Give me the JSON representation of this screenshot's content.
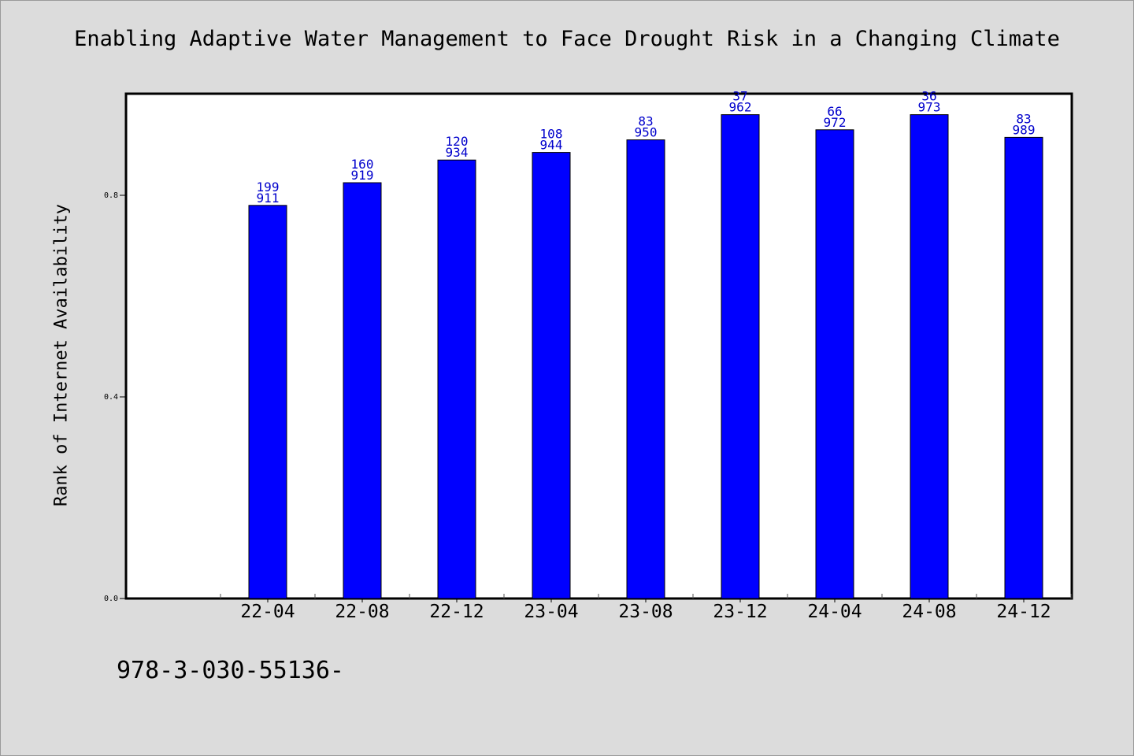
{
  "chart_data": {
    "type": "bar",
    "title": "Enabling Adaptive Water Management to Face Drought Risk in a Changing Climate",
    "xlabel": "",
    "ylabel": "Rank of Internet Availability",
    "categories": [
      "22-04",
      "22-08",
      "22-12",
      "23-04",
      "23-08",
      "23-12",
      "24-04",
      "24-08",
      "24-12"
    ],
    "values": [
      0.78,
      0.825,
      0.87,
      0.885,
      0.91,
      0.96,
      0.93,
      0.96,
      0.915
    ],
    "data_labels_top": [
      "199",
      "160",
      "120",
      "108",
      "83",
      "37",
      "66",
      "36",
      "83"
    ],
    "data_labels_bottom": [
      "911",
      "919",
      "934",
      "944",
      "950",
      "962",
      "972",
      "973",
      "989"
    ],
    "ylim": [
      0,
      1.0
    ],
    "yticks": [
      0.0,
      0.4,
      0.8
    ],
    "ytick_labels": [
      "0.0",
      "0.4",
      "0.8"
    ],
    "grid": false,
    "colors": {
      "bar_fill": "#0000ff",
      "bar_stroke": "#000000",
      "data_label": "#0000cc",
      "plot_background": "#ffffff",
      "page_background": "#dcdcdc"
    }
  },
  "footer": {
    "text": "978-3-030-55136-"
  }
}
